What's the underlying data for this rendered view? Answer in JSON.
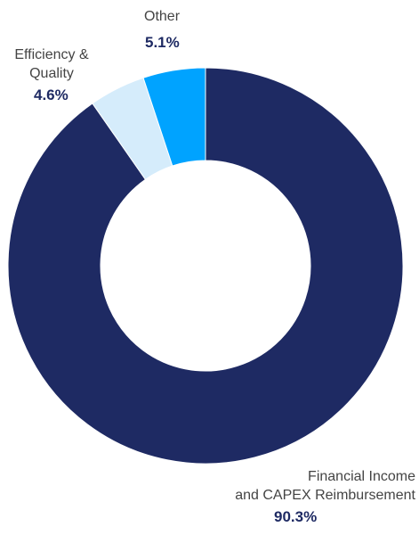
{
  "chart_data": {
    "type": "pie",
    "donut": true,
    "start_angle_deg": 0,
    "direction": "clockwise",
    "slices": [
      {
        "label_lines": [
          "Financial Income",
          "and CAPEX Reimbursement"
        ],
        "value": 90.3,
        "value_label": "90.3%",
        "color": "#1e2a63"
      },
      {
        "label_lines": [
          "Efficiency &",
          "Quality"
        ],
        "value": 4.6,
        "value_label": "4.6%",
        "color": "#d5ecfb"
      },
      {
        "label_lines": [
          "Other"
        ],
        "value": 5.1,
        "value_label": "5.1%",
        "color": "#00a3ff"
      }
    ]
  }
}
